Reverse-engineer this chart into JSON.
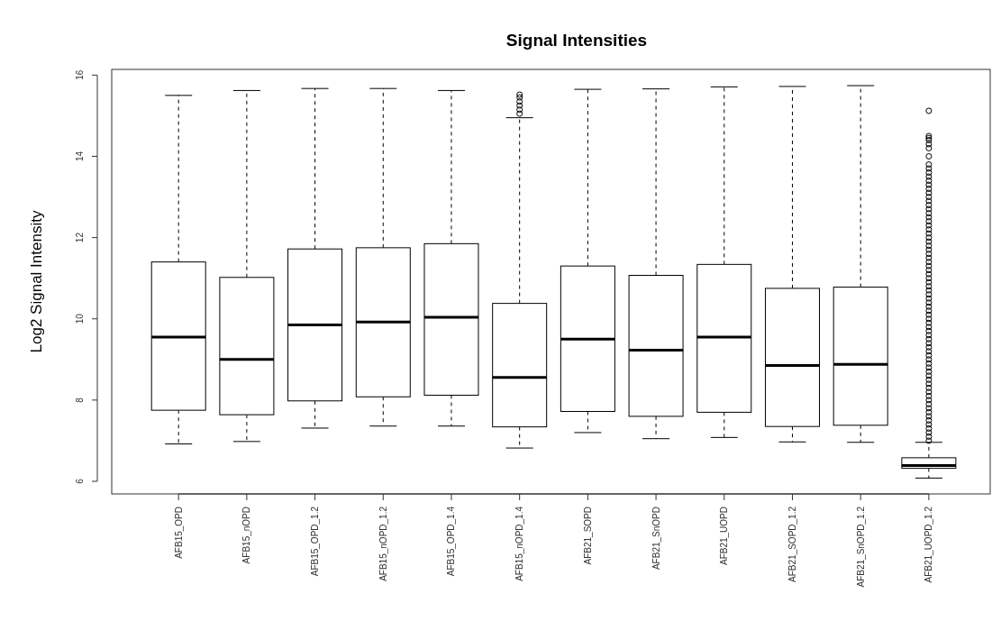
{
  "chart_data": {
    "type": "box",
    "title": "Signal Intensities",
    "ylabel": "Log2 Signal Intensity",
    "categories": [
      "AFB15_OPD",
      "AFB15_nOPD",
      "AFB15_OPD_1.2",
      "AFB15_nOPD_1.2",
      "AFB15_OPD_1.4",
      "AFB15_nOPD_1.4",
      "AFB21_SOPD",
      "AFB21_SnOPD",
      "AFB21_UOPD",
      "AFB21_SOPD_1.2",
      "AFB21_SnOPD_1.2",
      "AFB21_UOPD_1.2"
    ],
    "boxes": [
      {
        "low": 6.92,
        "q1": 7.75,
        "median": 9.55,
        "q3": 11.4,
        "high": 15.5
      },
      {
        "low": 6.98,
        "q1": 7.64,
        "median": 9.0,
        "q3": 11.02,
        "high": 15.62
      },
      {
        "low": 7.31,
        "q1": 7.98,
        "median": 9.85,
        "q3": 11.72,
        "high": 15.67
      },
      {
        "low": 7.36,
        "q1": 8.08,
        "median": 9.92,
        "q3": 11.75,
        "high": 15.67
      },
      {
        "low": 7.36,
        "q1": 8.12,
        "median": 10.04,
        "q3": 11.85,
        "high": 15.62
      },
      {
        "low": 6.82,
        "q1": 7.34,
        "median": 8.56,
        "q3": 10.38,
        "high": 14.95,
        "outliers": [
          15.05,
          15.15,
          15.25,
          15.35,
          15.45,
          15.52
        ]
      },
      {
        "low": 7.2,
        "q1": 7.72,
        "median": 9.5,
        "q3": 11.3,
        "high": 15.65
      },
      {
        "low": 7.05,
        "q1": 7.6,
        "median": 9.23,
        "q3": 11.07,
        "high": 15.66
      },
      {
        "low": 7.08,
        "q1": 7.7,
        "median": 9.55,
        "q3": 11.34,
        "high": 15.71
      },
      {
        "low": 6.97,
        "q1": 7.35,
        "median": 8.85,
        "q3": 10.75,
        "high": 15.72
      },
      {
        "low": 6.96,
        "q1": 7.38,
        "median": 8.88,
        "q3": 10.78,
        "high": 15.74
      },
      {
        "low": 6.08,
        "q1": 6.32,
        "median": 6.39,
        "q3": 6.58,
        "high": 6.96,
        "outliers": [
          15.12,
          14.5,
          14.45,
          14.4,
          14.3,
          14.2,
          14.0,
          13.8,
          13.7,
          13.6,
          13.5,
          13.4,
          13.3,
          13.2,
          13.1,
          13.0,
          12.9,
          12.8,
          12.7,
          12.6,
          12.5,
          12.4,
          12.3,
          12.2,
          12.1,
          12.0,
          11.9,
          11.8,
          11.7,
          11.6,
          11.5,
          11.4,
          11.3,
          11.2,
          11.1,
          11.0,
          10.9,
          10.8,
          10.7,
          10.6,
          10.5,
          10.4,
          10.3,
          10.2,
          10.1,
          10.0,
          9.9,
          9.8,
          9.7,
          9.6,
          9.5,
          9.4,
          9.3,
          9.2,
          9.1,
          9.0,
          8.9,
          8.8,
          8.7,
          8.6,
          8.5,
          8.4,
          8.3,
          8.2,
          8.1,
          8.0,
          7.9,
          7.8,
          7.7,
          7.6,
          7.5,
          7.4,
          7.3,
          7.2,
          7.1,
          7.0
        ]
      }
    ],
    "color": "#000000",
    "ylim": [
      5.69,
      16.14
    ],
    "yticks": [
      6,
      8,
      10,
      12,
      14,
      16
    ],
    "grid": false
  }
}
